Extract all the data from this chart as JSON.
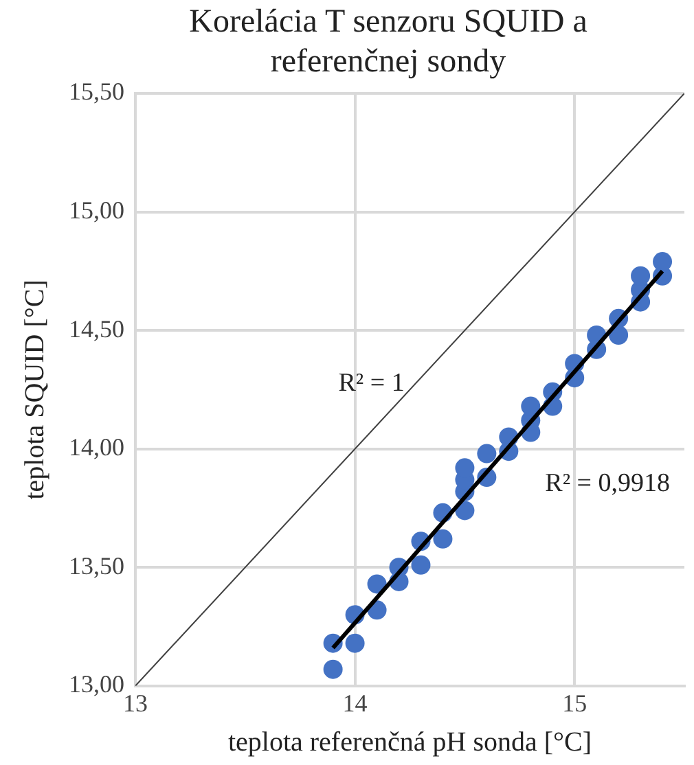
{
  "chart_data": {
    "type": "scatter",
    "title": "Korelácia T senzoru SQUID a referenčnej sondy",
    "xlabel": "teplota referenčná pH sonda [°C]",
    "ylabel": "teplota SQUID [°C]",
    "xlim": [
      13,
      15.5
    ],
    "xticks": [
      13,
      14,
      15
    ],
    "ylim": [
      13,
      15.5
    ],
    "yticks": [
      {
        "value": 13,
        "label": "13,00"
      },
      {
        "value": 13.5,
        "label": "13,50"
      },
      {
        "value": 14,
        "label": "14,00"
      },
      {
        "value": 14.5,
        "label": "14,50"
      },
      {
        "value": 15,
        "label": "15,00"
      },
      {
        "value": 15.5,
        "label": "15,50"
      }
    ],
    "grid": true,
    "series": [
      {
        "type": "scatter",
        "color": "#4472c4",
        "marker": "circle",
        "x": [
          13.9,
          13.9,
          14.0,
          14.0,
          14.1,
          14.1,
          14.2,
          14.2,
          14.3,
          14.3,
          14.4,
          14.4,
          14.5,
          14.5,
          14.5,
          14.5,
          14.6,
          14.6,
          14.7,
          14.7,
          14.8,
          14.8,
          14.8,
          14.9,
          14.9,
          15.0,
          15.0,
          15.1,
          15.1,
          15.2,
          15.2,
          15.3,
          15.3,
          15.3,
          15.4,
          15.4
        ],
        "values": [
          13.07,
          13.18,
          13.18,
          13.3,
          13.32,
          13.43,
          13.44,
          13.5,
          13.51,
          13.61,
          13.62,
          13.73,
          13.74,
          13.82,
          13.87,
          13.92,
          13.88,
          13.98,
          13.99,
          14.05,
          14.07,
          14.12,
          14.18,
          14.18,
          14.24,
          14.3,
          14.36,
          14.42,
          14.48,
          14.48,
          14.55,
          14.62,
          14.67,
          14.73,
          14.73,
          14.79
        ]
      },
      {
        "type": "line",
        "color": "#000000",
        "x": [
          13.9,
          15.4
        ],
        "values": [
          13.16,
          14.75
        ],
        "marker": "none"
      },
      {
        "type": "line",
        "color": "#404040",
        "x": [
          13,
          15.5
        ],
        "values": [
          13,
          15.5
        ],
        "marker": "none"
      }
    ],
    "annotations": [
      "R² = 1",
      "R² = 0,9918"
    ]
  }
}
